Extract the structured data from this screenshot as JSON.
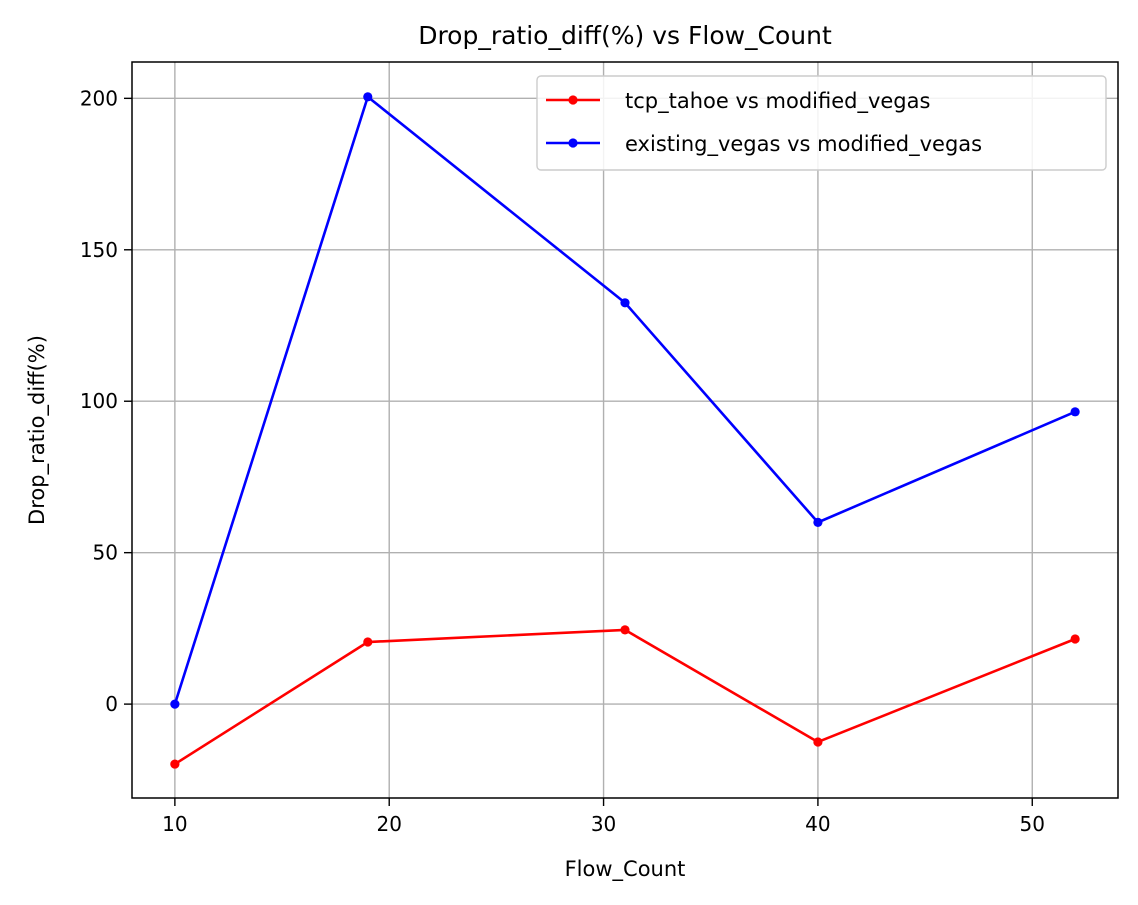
{
  "chart_data": {
    "type": "line",
    "title": "Drop_ratio_diff(%) vs Flow_Count",
    "xlabel": "Flow_Count",
    "ylabel": "Drop_ratio_diff(%)",
    "xlim": [
      8,
      54
    ],
    "ylim": [
      -31,
      212
    ],
    "xticks": [
      10,
      20,
      30,
      40,
      50
    ],
    "yticks": [
      0,
      50,
      100,
      150,
      200
    ],
    "grid": true,
    "legend_position": "upper-right",
    "x": [
      10,
      19,
      31,
      40,
      52
    ],
    "series": [
      {
        "name": "tcp_tahoe vs modified_vegas",
        "color": "#ff0000",
        "values": [
          -19.8,
          20.5,
          24.5,
          -12.5,
          21.5
        ]
      },
      {
        "name": "existing_vegas vs modified_vegas",
        "color": "#0000ff",
        "values": [
          0,
          200.5,
          132.5,
          60,
          96.5
        ]
      }
    ]
  }
}
